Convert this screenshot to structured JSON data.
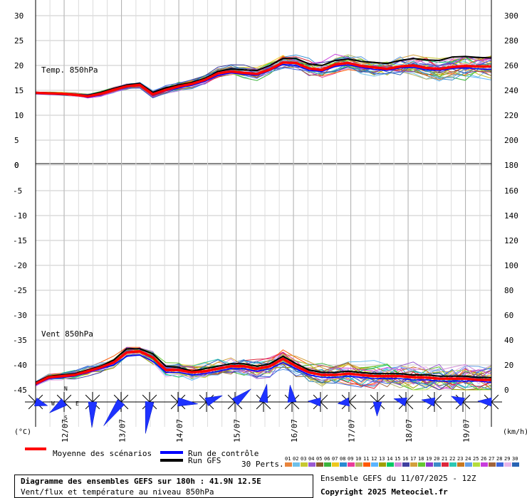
{
  "chart_data": {
    "type": "line",
    "left_unit": "(°C)",
    "right_unit": "(km/h)",
    "panels": {
      "temp": {
        "label": "Temp. 850hPa",
        "left_ticks": [
          30,
          25,
          20,
          15,
          10,
          5,
          0
        ],
        "right_ticks": [
          300,
          280,
          260,
          240,
          220,
          200,
          180
        ],
        "ylim": [
          0,
          30
        ]
      },
      "wind": {
        "label": "Vent 850hPa",
        "left_ticks": [
          -5,
          -10,
          -15,
          -20,
          -25,
          -30,
          -35,
          -40,
          -45
        ],
        "right_ticks": [
          160,
          140,
          120,
          100,
          80,
          60,
          40,
          20,
          0
        ],
        "ylim_kmh": [
          0,
          180
        ]
      }
    },
    "x_ticks": [
      "12/07",
      "13/07",
      "14/07",
      "15/07",
      "16/07",
      "17/07",
      "18/07",
      "19/07"
    ],
    "series": [
      {
        "name": "Moyenne des scénarios",
        "color": "#ff0000",
        "temp": [
          14.5,
          14.4,
          14.3,
          14.1,
          13.8,
          14.3,
          15.1,
          15.8,
          16.1,
          14.2,
          15.1,
          15.8,
          16.3,
          17.1,
          18.4,
          18.8,
          18.5,
          18.3,
          19.2,
          20.6,
          20.5,
          19.4,
          19.1,
          20.2,
          20.5,
          19.9,
          19.6,
          19.3,
          19.8,
          20.0,
          19.5,
          19.3,
          19.7,
          19.9,
          19.8,
          19.8
        ],
        "wind": [
          5,
          10,
          11,
          12,
          15,
          18,
          22,
          30,
          31,
          26,
          16,
          16,
          14,
          15,
          17,
          19,
          19,
          17,
          19,
          25,
          19,
          14,
          12,
          12,
          13,
          12,
          11,
          11,
          11,
          10,
          10,
          9,
          9,
          9,
          8,
          8
        ]
      },
      {
        "name": "Run de contrôle",
        "color": "#0000ff",
        "temp": [
          14.3,
          14.2,
          14.1,
          14.0,
          13.6,
          14.1,
          15.0,
          15.6,
          16.0,
          14.0,
          14.9,
          15.5,
          16.0,
          16.8,
          18.0,
          18.5,
          18.2,
          18.0,
          19.0,
          20.2,
          20.0,
          19.0,
          18.8,
          19.8,
          20.1,
          19.6,
          19.2,
          19.0,
          19.5,
          19.6,
          19.1,
          19.0,
          19.4,
          19.5,
          19.3,
          19.2
        ],
        "wind": [
          4,
          9,
          10,
          11,
          14,
          17,
          20,
          27,
          28,
          23,
          14,
          14,
          12,
          13,
          15,
          17,
          17,
          15,
          17,
          22,
          17,
          12,
          10,
          10,
          11,
          10,
          9,
          9,
          9,
          8,
          8,
          7,
          7,
          7,
          7,
          6
        ]
      },
      {
        "name": "Run GFS",
        "color": "#000000",
        "temp": [
          14.6,
          14.5,
          14.4,
          14.2,
          14.0,
          14.6,
          15.4,
          16.1,
          16.4,
          14.6,
          15.5,
          16.1,
          16.6,
          17.4,
          18.8,
          19.3,
          19.1,
          19.0,
          20.0,
          21.4,
          21.4,
          20.3,
          20.0,
          21.0,
          21.3,
          20.8,
          20.6,
          20.4,
          21.0,
          21.4,
          21.1,
          21.0,
          21.7,
          21.8,
          21.6,
          21.5
        ],
        "wind": [
          6,
          11,
          12,
          13,
          16,
          19,
          24,
          33,
          33,
          29,
          19,
          18,
          15,
          17,
          19,
          21,
          21,
          19,
          21,
          27,
          21,
          16,
          14,
          14,
          15,
          14,
          13,
          13,
          13,
          12,
          12,
          11,
          11,
          11,
          10,
          10
        ]
      }
    ],
    "perturbations": {
      "label": "30 Perts.",
      "count": 30,
      "ids": [
        "01",
        "02",
        "03",
        "04",
        "05",
        "06",
        "07",
        "08",
        "09",
        "10",
        "11",
        "12",
        "13",
        "14",
        "15",
        "16",
        "17",
        "18",
        "19",
        "20",
        "21",
        "22",
        "23",
        "24",
        "25",
        "26",
        "27",
        "28",
        "29",
        "30"
      ],
      "colors": [
        "#e8843c",
        "#6ec0e8",
        "#c8c832",
        "#9a5ad2",
        "#8a5a2a",
        "#3cb43c",
        "#eec81e",
        "#2a8ad2",
        "#ea3c9a",
        "#b4b464",
        "#ff5a00",
        "#5ab4ff",
        "#a0a000",
        "#00c864",
        "#d08cd8",
        "#4040a0",
        "#d2a03c",
        "#64c832",
        "#8c3cc8",
        "#3c8cc8",
        "#dc283c",
        "#2cc8b4",
        "#c87820",
        "#64a0e8",
        "#b4dc3c",
        "#c83cdc",
        "#a0643c",
        "#3c64dc",
        "#e8b4e8",
        "#2864b4"
      ]
    },
    "wind_roses": [
      {
        "label_n": "N",
        "label_s": "S",
        "label_w": "W",
        "label_e": "E"
      }
    ]
  },
  "legend": {
    "mean": "Moyenne des scénarios",
    "control": "Run de contrôle",
    "gfs": "Run GFS",
    "perts": "30 Perts."
  },
  "footer": {
    "title": "Diagramme des ensembles GEFS sur 180h : 41.9N 12.5E",
    "subtitle": "Vent/flux et température au niveau 850hPa",
    "run": "Ensemble GEFS du 11/07/2025 - 12Z",
    "copyright": "Copyright 2025 Meteociel.fr"
  }
}
